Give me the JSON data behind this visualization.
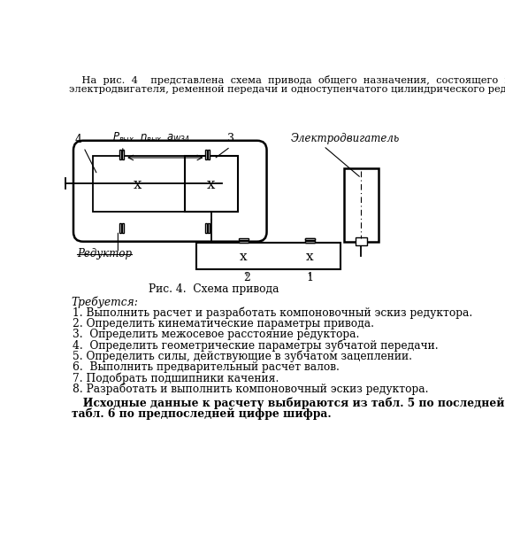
{
  "line1": "    На  рис.  4    представлена  схема  привода  общего  назначения,  состоящего  из",
  "line2": "электродвигателя, ременной передачи и одноступенчатого цилиндрического редуктора.",
  "fig_caption": "Рис. 4.  Схема привода",
  "requires_title": "Требуется:",
  "items": [
    "1. Выполнить расчет и разработать компоновочный эскиз редуктора.",
    "2. Определить кинематические параметры привода.",
    "3.  Определить межосевое расстояние редуктора.",
    "4.  Определить геометрические параметры зубчатой передачи.",
    "5. Определить силы, действующие в зубчатом зацеплении.",
    "6.  Выполнить предварительный расчет валов.",
    "7. Подобрать подшипники качения.",
    "8. Разработать и выполнить компоновочный эскиз редуктора."
  ],
  "bold_line1": "   Исходные данные к расчету выбираются из табл. 5 по последней цифре шифра и из",
  "bold_line2": "табл. 6 по предпоследней цифре шифра.",
  "bg_color": "#ffffff",
  "line_color": "#000000"
}
